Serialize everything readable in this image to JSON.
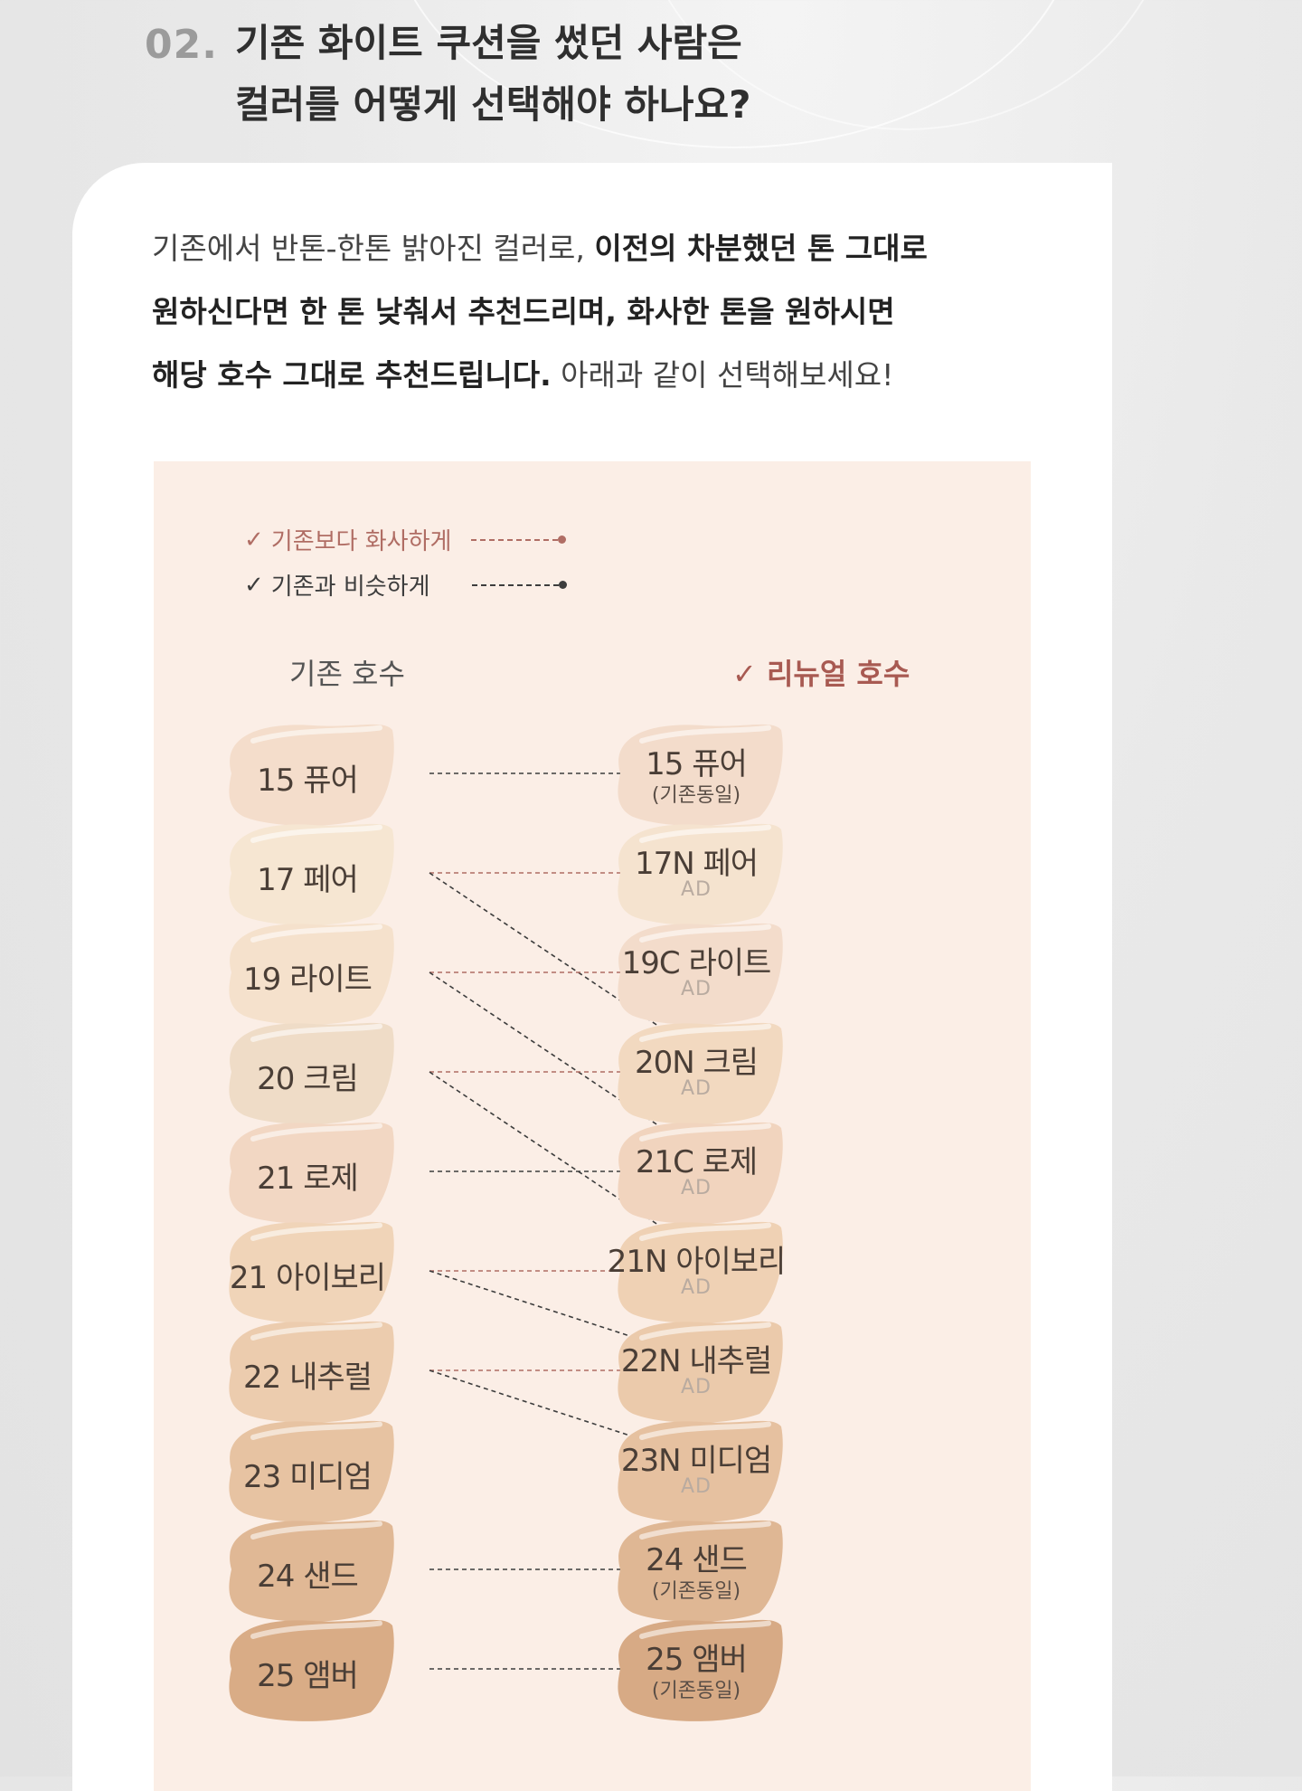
{
  "header": {
    "number": "02.",
    "title": "기존 화이트 쿠션을 썼던 사람은\n컬러를 어떻게 선택해야 하나요?"
  },
  "intro": {
    "part1": "기존에서 반톤-한톤 밝아진 컬러로, ",
    "bold1": "이전의 차분했던 톤 그대로",
    "bold2": "원하신다면 한 톤 낮춰서 추천드리며, 화사한 톤을 원하시면",
    "bold3": "해당 호수 그대로 추천드립니다.",
    "part2": " 아래과 같이 선택해보세요!"
  },
  "legend": {
    "brighter": {
      "check": "✓",
      "label": "기존보다 화사하게",
      "color": "#b06d64"
    },
    "similar": {
      "check": "✓",
      "label": "기존과 비슷하게",
      "color": "#3d3d3d"
    }
  },
  "columns": {
    "old_title": "기존 호수",
    "new_check": "✓",
    "new_title": "리뉴얼 호수",
    "new_title_color": "#a85a52"
  },
  "old_shades": [
    {
      "label": "15 퓨어",
      "color": "#f4ddcb"
    },
    {
      "label": "17 페어",
      "color": "#f6e6d2"
    },
    {
      "label": "19 라이트",
      "color": "#f5e1cc"
    },
    {
      "label": "20 크림",
      "color": "#efdcc7"
    },
    {
      "label": "21 로제",
      "color": "#f2d7c3"
    },
    {
      "label": "21 아이보리",
      "color": "#f0d4b8"
    },
    {
      "label": "22 내추럴",
      "color": "#ecccae"
    },
    {
      "label": "23 미디엄",
      "color": "#e7c3a2"
    },
    {
      "label": "24 샌드",
      "color": "#e0b895"
    },
    {
      "label": "25 앰버",
      "color": "#d9ac86"
    }
  ],
  "new_shades": [
    {
      "label": "15 퓨어",
      "sub": "(기존동일)",
      "color": "#f3dccb"
    },
    {
      "label": "17N 페어",
      "sub": "AD",
      "color": "#f5e3cf"
    },
    {
      "label": "19C 라이트",
      "sub": "AD",
      "color": "#f3dccb"
    },
    {
      "label": "20N 크림",
      "sub": "AD",
      "color": "#f2d9c0"
    },
    {
      "label": "21C 로제",
      "sub": "AD",
      "color": "#f1d4be"
    },
    {
      "label": "21N 아이보리",
      "sub": "AD",
      "color": "#efd1b4"
    },
    {
      "label": "22N 내추럴",
      "sub": "AD",
      "color": "#ebcaab"
    },
    {
      "label": "23N 미디엄",
      "sub": "AD",
      "color": "#e6c1a0"
    },
    {
      "label": "24 샌드",
      "sub": "(기존동일)",
      "color": "#dfb794"
    },
    {
      "label": "25 앰버",
      "sub": "(기존동일)",
      "color": "#d7aa85"
    }
  ],
  "connections": [
    {
      "from": 0,
      "to": 0,
      "type": "similar"
    },
    {
      "from": 1,
      "to": 1,
      "type": "brighter"
    },
    {
      "from": 1,
      "to": 3,
      "type": "similar"
    },
    {
      "from": 2,
      "to": 2,
      "type": "brighter"
    },
    {
      "from": 2,
      "to": 4,
      "type": "similar"
    },
    {
      "from": 3,
      "to": 3,
      "type": "brighter"
    },
    {
      "from": 3,
      "to": 5,
      "type": "similar"
    },
    {
      "from": 4,
      "to": 4,
      "type": "similar"
    },
    {
      "from": 5,
      "to": 5,
      "type": "brighter"
    },
    {
      "from": 5,
      "to": 6,
      "type": "similar"
    },
    {
      "from": 6,
      "to": 6,
      "type": "brighter"
    },
    {
      "from": 6,
      "to": 7,
      "type": "similar"
    },
    {
      "from": 8,
      "to": 8,
      "type": "similar"
    },
    {
      "from": 9,
      "to": 9,
      "type": "similar"
    }
  ]
}
